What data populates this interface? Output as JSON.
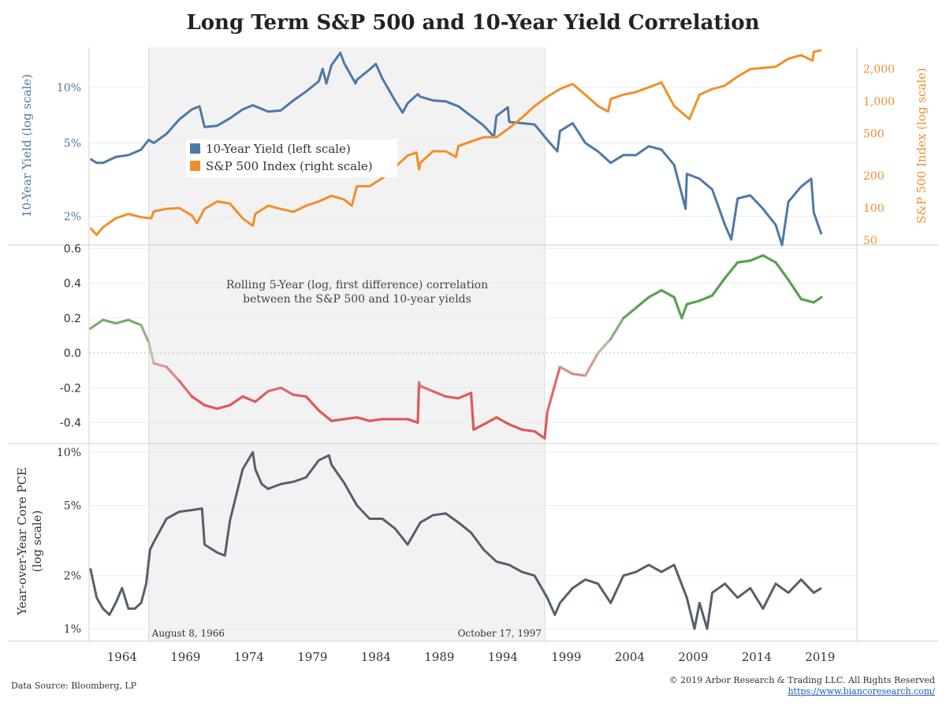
{
  "title": "Long Term S&P 500 and 10-Year Yield Correlation",
  "footer": {
    "source": "Data Source: Bloomberg, LP",
    "copyright": "© 2019 Arbor Research & Trading LLC. All Rights Reserved",
    "url": "https://www.biancoresearch.com/"
  },
  "colors": {
    "yield": "#4e79a7",
    "spx": "#f28e2b",
    "pce": "#555f6d",
    "shade": "#f2f2f2",
    "corr_pos": "#59a14f",
    "corr_neg": "#e15759"
  },
  "chart_data": [
    {
      "type": "line",
      "panel": "top",
      "x_ticks": [
        "1964",
        "1969",
        "1974",
        "1979",
        "1984",
        "1989",
        "1994",
        "1999",
        "2004",
        "2009",
        "2014",
        "2019"
      ],
      "shaded_range": [
        1966.6,
        1997.8
      ],
      "shaded_labels": [
        "August 8, 1966",
        "October 17, 1997"
      ],
      "ylabel_left": "10-Year Yield (log scale)",
      "ylabel_right": "S&P 500 Index (log scale)",
      "left_ticks": [
        "2%",
        "5%",
        "10%"
      ],
      "left_tick_values": [
        2,
        5,
        10
      ],
      "left_scale": "log",
      "ylim_left": [
        1.4,
        16.5
      ],
      "right_ticks": [
        "50",
        "100",
        "200",
        "500",
        "1,000",
        "2,000"
      ],
      "right_tick_values": [
        50,
        100,
        200,
        500,
        1000,
        2000
      ],
      "right_scale": "log",
      "ylim_right": [
        45,
        3200
      ],
      "legend": [
        "10-Year Yield (left scale)",
        "S&P 500 Index (right scale)"
      ],
      "series": [
        {
          "name": "10-Year Yield (left scale)",
          "axis": "left",
          "x": [
            1962,
            1962.5,
            1963,
            1964,
            1965,
            1966,
            1966.6,
            1967,
            1968,
            1969,
            1970,
            1970.6,
            1971,
            1972,
            1973,
            1974,
            1974.8,
            1975,
            1976,
            1977,
            1978,
            1979,
            1980,
            1980.3,
            1980.6,
            1981,
            1981.7,
            1982,
            1982.9,
            1983,
            1984,
            1984.5,
            1985,
            1986,
            1986.6,
            1987,
            1987.8,
            1988,
            1989,
            1990,
            1991,
            1992,
            1993,
            1993.8,
            1994,
            1994.9,
            1995,
            1996,
            1997,
            1998,
            1998.8,
            1999,
            2000,
            2001,
            2002,
            2003,
            2004,
            2005,
            2006,
            2007,
            2008,
            2008.9,
            2009,
            2010,
            2011,
            2012,
            2012.5,
            2013,
            2014,
            2015,
            2016,
            2016.5,
            2017,
            2018,
            2018.8,
            2019,
            2019.6
          ],
          "values": [
            4.1,
            3.9,
            3.9,
            4.2,
            4.3,
            4.6,
            5.2,
            5.0,
            5.6,
            6.7,
            7.6,
            7.9,
            6.1,
            6.2,
            6.8,
            7.6,
            8.0,
            7.9,
            7.4,
            7.5,
            8.5,
            9.5,
            10.8,
            12.6,
            10.5,
            13.2,
            15.4,
            13.5,
            10.5,
            11.0,
            12.5,
            13.4,
            11.2,
            8.5,
            7.3,
            8.2,
            9.2,
            8.9,
            8.5,
            8.4,
            7.9,
            7.0,
            6.2,
            5.4,
            7.0,
            7.8,
            6.5,
            6.4,
            6.3,
            5.2,
            4.5,
            5.8,
            6.4,
            5.0,
            4.5,
            3.9,
            4.3,
            4.3,
            4.8,
            4.6,
            3.8,
            2.2,
            3.4,
            3.2,
            2.8,
            1.8,
            1.5,
            2.5,
            2.6,
            2.2,
            1.8,
            1.4,
            2.4,
            2.9,
            3.2,
            2.1,
            1.6
          ]
        },
        {
          "name": "S&P 500 Index (right scale)",
          "axis": "right",
          "x": [
            1962,
            1962.5,
            1963,
            1964,
            1965,
            1966,
            1966.8,
            1967,
            1968,
            1969,
            1970,
            1970.4,
            1971,
            1972,
            1973,
            1974,
            1974.8,
            1975,
            1976,
            1977,
            1978,
            1979,
            1980,
            1981,
            1982,
            1982.6,
            1983,
            1984,
            1985,
            1986,
            1987,
            1987.7,
            1987.9,
            1988,
            1989,
            1990,
            1990.8,
            1991,
            1992,
            1993,
            1994,
            1995,
            1996,
            1997,
            1998,
            1999,
            2000,
            2001,
            2002,
            2002.8,
            2003,
            2004,
            2005,
            2006,
            2007,
            2008,
            2009.2,
            2010,
            2011,
            2012,
            2013,
            2014,
            2015,
            2016,
            2017,
            2018,
            2018.9,
            2019,
            2019.6
          ],
          "values": [
            65,
            56,
            66,
            80,
            88,
            82,
            80,
            93,
            98,
            100,
            85,
            72,
            98,
            115,
            110,
            80,
            68,
            88,
            105,
            98,
            92,
            105,
            115,
            130,
            120,
            105,
            160,
            160,
            190,
            240,
            310,
            330,
            230,
            265,
            340,
            340,
            300,
            380,
            420,
            460,
            460,
            560,
            700,
            900,
            1100,
            1300,
            1450,
            1150,
            900,
            800,
            1050,
            1150,
            1220,
            1350,
            1500,
            900,
            680,
            1150,
            1300,
            1400,
            1700,
            2000,
            2050,
            2100,
            2500,
            2700,
            2400,
            2900,
            3000
          ]
        }
      ]
    },
    {
      "type": "line",
      "panel": "middle",
      "annotation": "Rolling 5-Year (log, first difference) correlation between the S&P 500 and 10-year yields",
      "y_ticks": [
        "0.6",
        "0.4",
        "0.2",
        "0.0",
        "-0.2",
        "-0.4"
      ],
      "y_tick_values": [
        0.6,
        0.4,
        0.2,
        0.0,
        -0.2,
        -0.4
      ],
      "ylim": [
        -0.52,
        0.62
      ],
      "color_scale": "green for positive, red for negative",
      "series": [
        {
          "x": [
            1962,
            1963,
            1964,
            1965,
            1966,
            1966.6,
            1967,
            1968,
            1969,
            1970,
            1971,
            1972,
            1973,
            1974,
            1975,
            1976,
            1977,
            1978,
            1979,
            1980,
            1981,
            1982,
            1983,
            1984,
            1985,
            1986,
            1987,
            1987.8,
            1987.9,
            1988,
            1989,
            1990,
            1991,
            1992,
            1992.2,
            1993,
            1994,
            1995,
            1996,
            1997,
            1997.8,
            1998,
            1999,
            2000,
            2001,
            2002,
            2003,
            2004,
            2005,
            2006,
            2007,
            2008,
            2008.6,
            2009,
            2010,
            2011,
            2012,
            2013,
            2014,
            2015,
            2016,
            2017,
            2018,
            2019,
            2019.6
          ],
          "values": [
            0.14,
            0.19,
            0.17,
            0.19,
            0.16,
            0.06,
            -0.06,
            -0.08,
            -0.16,
            -0.25,
            -0.3,
            -0.32,
            -0.3,
            -0.25,
            -0.28,
            -0.22,
            -0.2,
            -0.24,
            -0.25,
            -0.33,
            -0.39,
            -0.38,
            -0.37,
            -0.39,
            -0.38,
            -0.38,
            -0.38,
            -0.4,
            -0.17,
            -0.19,
            -0.22,
            -0.25,
            -0.26,
            -0.23,
            -0.44,
            -0.41,
            -0.37,
            -0.41,
            -0.44,
            -0.45,
            -0.49,
            -0.34,
            -0.08,
            -0.12,
            -0.13,
            0.0,
            0.08,
            0.2,
            0.26,
            0.32,
            0.36,
            0.32,
            0.2,
            0.28,
            0.3,
            0.33,
            0.43,
            0.52,
            0.53,
            0.56,
            0.52,
            0.42,
            0.31,
            0.29,
            0.32
          ]
        }
      ]
    },
    {
      "type": "line",
      "panel": "bottom",
      "ylabel": "Year-over-Year Core PCE (log scale)",
      "y_ticks": [
        "1%",
        "2%",
        "5%",
        "10%"
      ],
      "y_tick_values": [
        1,
        2,
        5,
        10
      ],
      "y_scale": "log",
      "ylim": [
        0.85,
        11.2
      ],
      "series": [
        {
          "x": [
            1962,
            1962.5,
            1963,
            1963.5,
            1964,
            1964.5,
            1965,
            1965.5,
            1966,
            1966.4,
            1966.7,
            1967,
            1968,
            1969,
            1970,
            1970.8,
            1971,
            1972,
            1972.6,
            1973,
            1974,
            1974.8,
            1975,
            1975.5,
            1976,
            1977,
            1978,
            1979,
            1980,
            1980.8,
            1981,
            1982,
            1983,
            1984,
            1985,
            1986,
            1987,
            1988,
            1989,
            1990,
            1991,
            1992,
            1993,
            1994,
            1995,
            1996,
            1997,
            1998,
            1998.6,
            1999,
            2000,
            2001,
            2002,
            2003,
            2004,
            2005,
            2006,
            2007,
            2008,
            2009,
            2009.6,
            2010,
            2010.6,
            2011,
            2012,
            2013,
            2014,
            2015,
            2016,
            2017,
            2018,
            2019,
            2019.6
          ],
          "values": [
            2.2,
            1.5,
            1.3,
            1.2,
            1.4,
            1.7,
            1.3,
            1.3,
            1.4,
            1.8,
            2.8,
            3.1,
            4.2,
            4.6,
            4.7,
            4.8,
            3.0,
            2.7,
            2.6,
            4.1,
            8.0,
            10.0,
            8.0,
            6.6,
            6.2,
            6.6,
            6.8,
            7.2,
            9.0,
            9.6,
            8.5,
            6.7,
            5.0,
            4.2,
            4.2,
            3.7,
            3.0,
            4.0,
            4.4,
            4.5,
            4.0,
            3.5,
            2.8,
            2.4,
            2.3,
            2.1,
            2.0,
            1.5,
            1.2,
            1.4,
            1.7,
            1.9,
            1.8,
            1.4,
            2.0,
            2.1,
            2.3,
            2.1,
            2.3,
            1.5,
            1.0,
            1.4,
            1.0,
            1.6,
            1.8,
            1.5,
            1.7,
            1.3,
            1.8,
            1.6,
            1.9,
            1.6,
            1.7
          ]
        }
      ]
    }
  ]
}
